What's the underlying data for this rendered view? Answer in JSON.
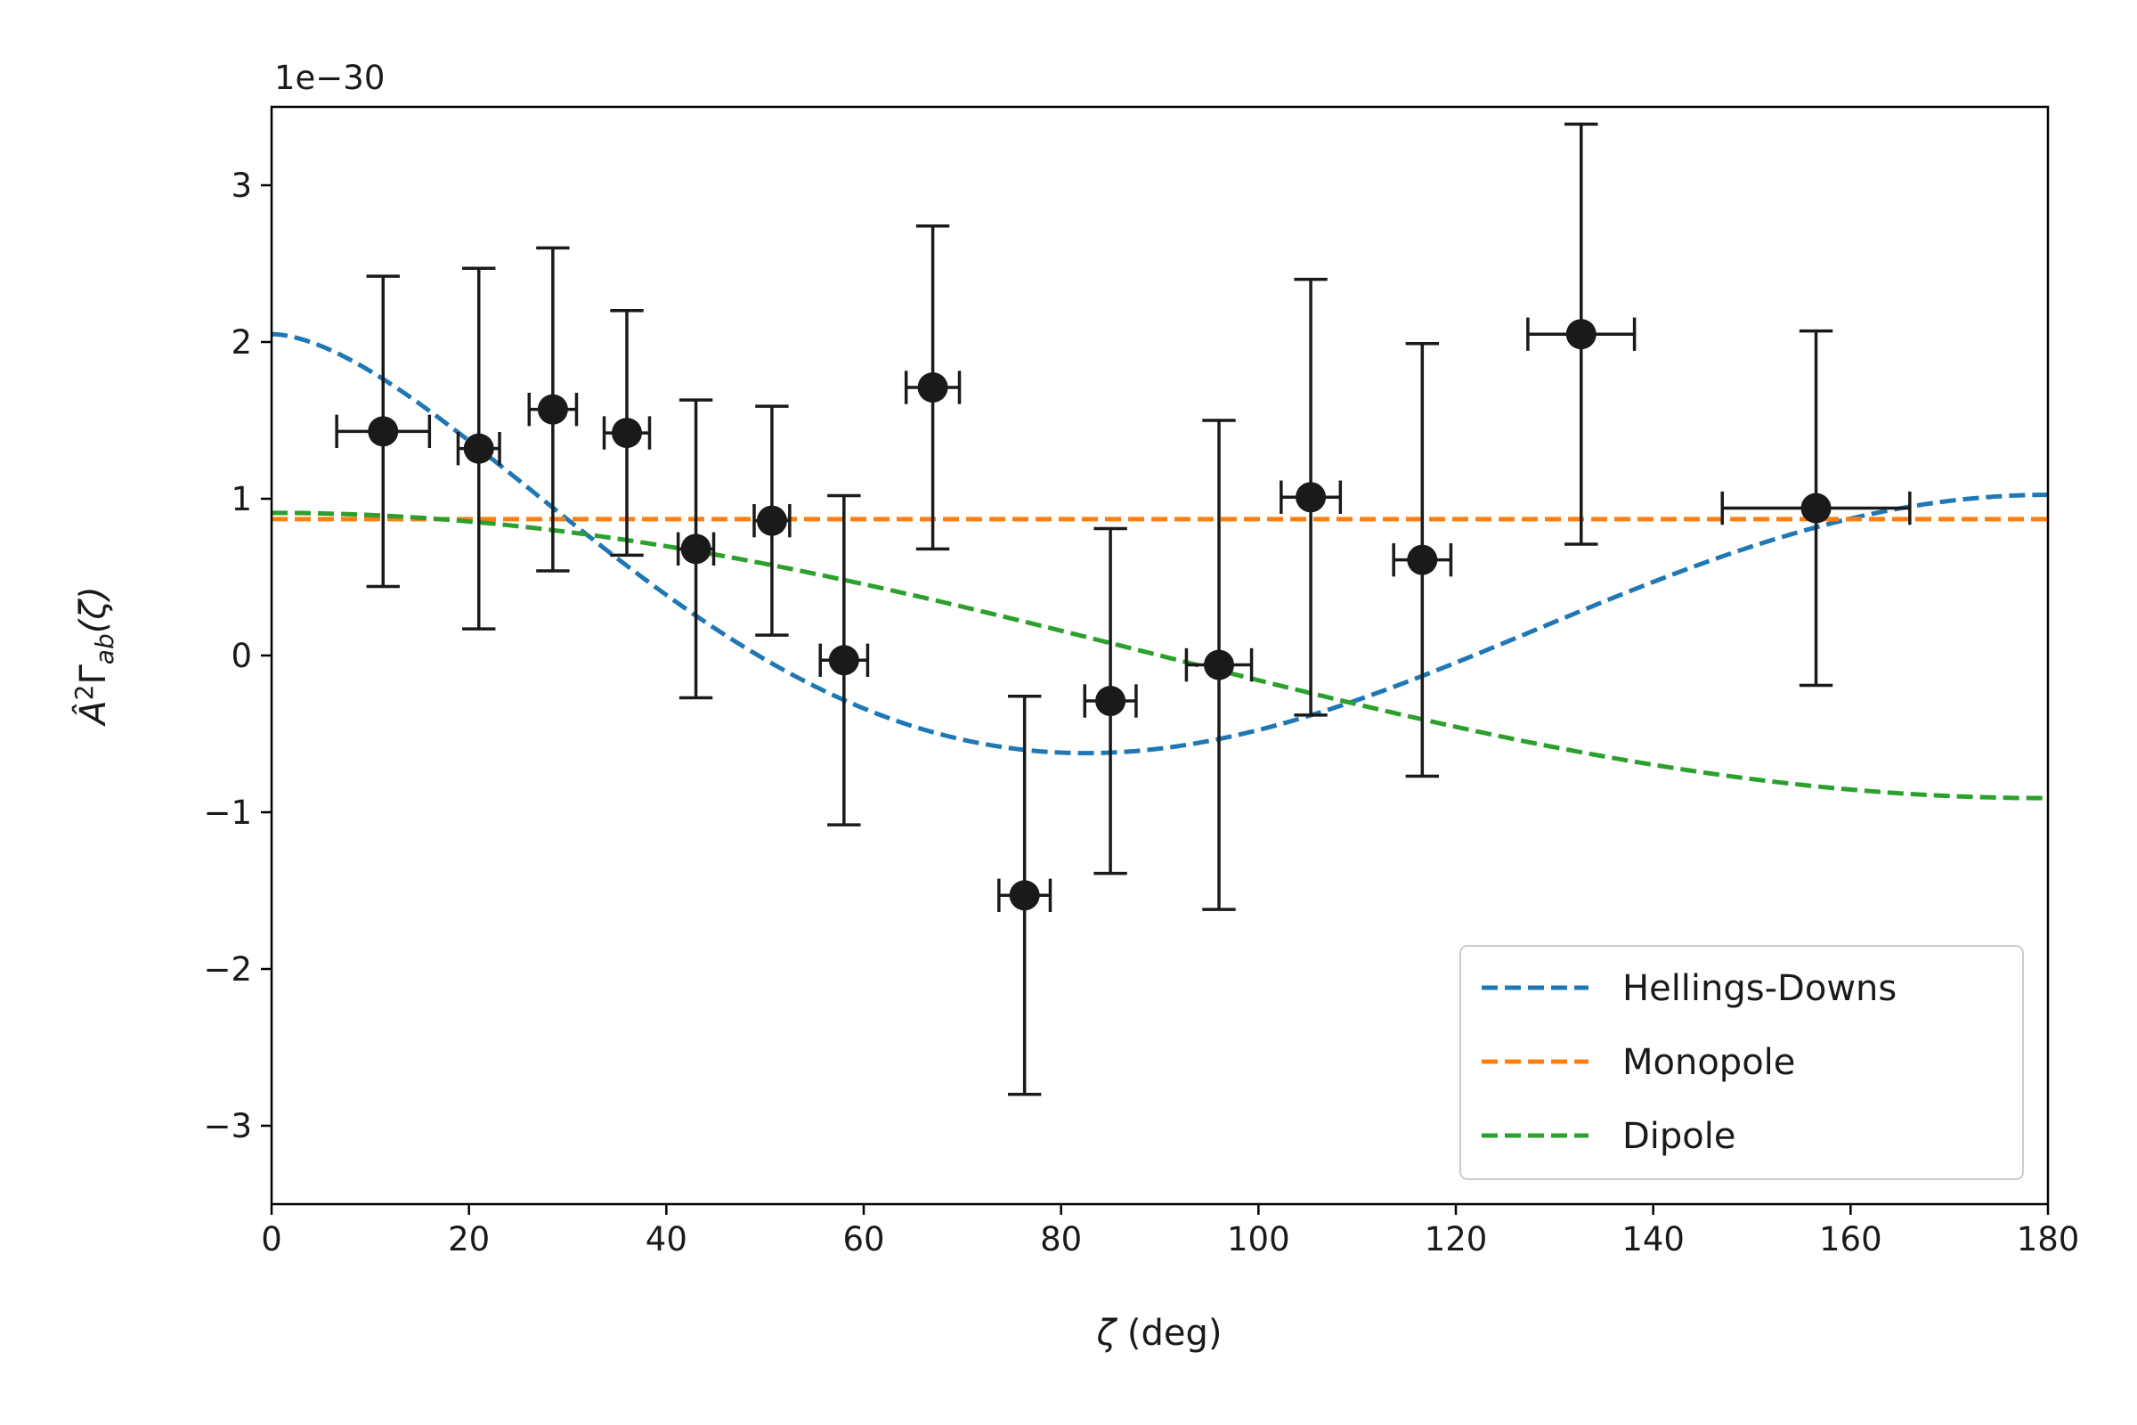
{
  "chart_data": {
    "type": "scatter",
    "title": "",
    "xlabel": "ζ (deg)",
    "ylabel": "Â²Γab(ζ)",
    "ylabel_parts": {
      "base": "Â",
      "sup": "2",
      "gamma": "Γ",
      "sub": "ab",
      "arg": "(ζ)"
    },
    "xlabel_parts": {
      "sym": "ζ",
      "unit": " (deg)"
    },
    "y_multiplier": "1e−30",
    "xlim": [
      0,
      180
    ],
    "ylim": [
      -3.5,
      3.5
    ],
    "x_ticks": [
      0,
      20,
      40,
      60,
      80,
      100,
      120,
      140,
      160,
      180
    ],
    "x_tick_labels": [
      "0",
      "20",
      "40",
      "60",
      "80",
      "100",
      "120",
      "140",
      "160",
      "180"
    ],
    "y_ticks": [
      -3,
      -2,
      -1,
      0,
      1,
      2,
      3
    ],
    "y_tick_labels": [
      "−3",
      "−2",
      "−1",
      "0",
      "1",
      "2",
      "3"
    ],
    "grid": false,
    "legend_position": "bottom-right",
    "points": [
      {
        "x": 11.3,
        "y": 1.43,
        "xerr": 4.7,
        "yerr": 0.99
      },
      {
        "x": 21.0,
        "y": 1.32,
        "xerr": 2.1,
        "yerr": 1.15
      },
      {
        "x": 28.5,
        "y": 1.57,
        "xerr": 2.4,
        "yerr": 1.03
      },
      {
        "x": 36.0,
        "y": 1.42,
        "xerr": 2.3,
        "yerr": 0.78
      },
      {
        "x": 43.0,
        "y": 0.68,
        "xerr": 1.8,
        "yerr": 0.95
      },
      {
        "x": 50.7,
        "y": 0.86,
        "xerr": 1.8,
        "yerr": 0.73
      },
      {
        "x": 58.0,
        "y": -0.03,
        "xerr": 2.4,
        "yerr": 1.05
      },
      {
        "x": 67.0,
        "y": 1.71,
        "xerr": 2.7,
        "yerr": 1.03
      },
      {
        "x": 76.3,
        "y": -1.53,
        "xerr": 2.6,
        "yerr": 1.27
      },
      {
        "x": 85.0,
        "y": -0.29,
        "xerr": 2.6,
        "yerr": 1.1
      },
      {
        "x": 96.0,
        "y": -0.06,
        "xerr": 3.3,
        "yerr": 1.56
      },
      {
        "x": 105.3,
        "y": 1.01,
        "xerr": 3.0,
        "yerr": 1.39
      },
      {
        "x": 116.6,
        "y": 0.61,
        "xerr": 2.9,
        "yerr": 1.38
      },
      {
        "x": 132.7,
        "y": 2.05,
        "xerr": 5.4,
        "yerr": 1.34
      },
      {
        "x": 156.5,
        "y": 0.94,
        "xerr": 9.5,
        "yerr": 1.13
      }
    ],
    "point_color": "#1a1a1a",
    "series": [
      {
        "name": "Hellings-Downs",
        "model": "hellings-downs",
        "amplitude": 2.05,
        "color": "#1f77b4"
      },
      {
        "name": "Monopole",
        "model": "monopole",
        "amplitude": 0.87,
        "color": "#ff7f0e"
      },
      {
        "name": "Dipole",
        "model": "dipole",
        "amplitude": 0.91,
        "color": "#2ca02c"
      }
    ]
  }
}
